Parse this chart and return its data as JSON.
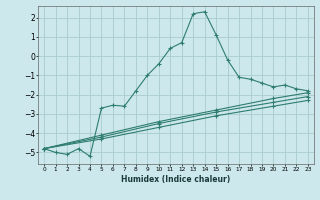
{
  "xlabel": "Humidex (Indice chaleur)",
  "background_color": "#cce8ec",
  "grid_color": "#aacccc",
  "line_color": "#2e7d6e",
  "xlim": [
    -0.5,
    23.5
  ],
  "ylim": [
    -5.6,
    2.6
  ],
  "xticks": [
    0,
    1,
    2,
    3,
    4,
    5,
    6,
    7,
    8,
    9,
    10,
    11,
    12,
    13,
    14,
    15,
    16,
    17,
    18,
    19,
    20,
    21,
    22,
    23
  ],
  "yticks": [
    -5,
    -4,
    -3,
    -2,
    -1,
    0,
    1,
    2
  ],
  "line1_x": [
    0,
    1,
    2,
    3,
    4,
    5,
    6,
    7,
    8,
    9,
    10,
    11,
    12,
    13,
    14,
    15,
    16,
    17,
    18,
    19,
    20,
    21,
    22,
    23
  ],
  "line1_y": [
    -4.8,
    -5.0,
    -5.1,
    -4.8,
    -5.2,
    -2.7,
    -2.55,
    -2.6,
    -1.8,
    -1.0,
    -0.4,
    0.4,
    0.7,
    2.2,
    2.3,
    1.1,
    -0.2,
    -1.1,
    -1.2,
    -1.4,
    -1.6,
    -1.5,
    -1.7,
    -1.8
  ],
  "line2_x": [
    0,
    5,
    10,
    15,
    20,
    23
  ],
  "line2_y": [
    -4.8,
    -4.1,
    -3.4,
    -2.8,
    -2.2,
    -1.9
  ],
  "line3_x": [
    0,
    5,
    10,
    15,
    20,
    23
  ],
  "line3_y": [
    -4.8,
    -4.2,
    -3.5,
    -2.9,
    -2.4,
    -2.1
  ],
  "line4_x": [
    0,
    5,
    10,
    15,
    20,
    23
  ],
  "line4_y": [
    -4.8,
    -4.3,
    -3.7,
    -3.1,
    -2.6,
    -2.3
  ]
}
